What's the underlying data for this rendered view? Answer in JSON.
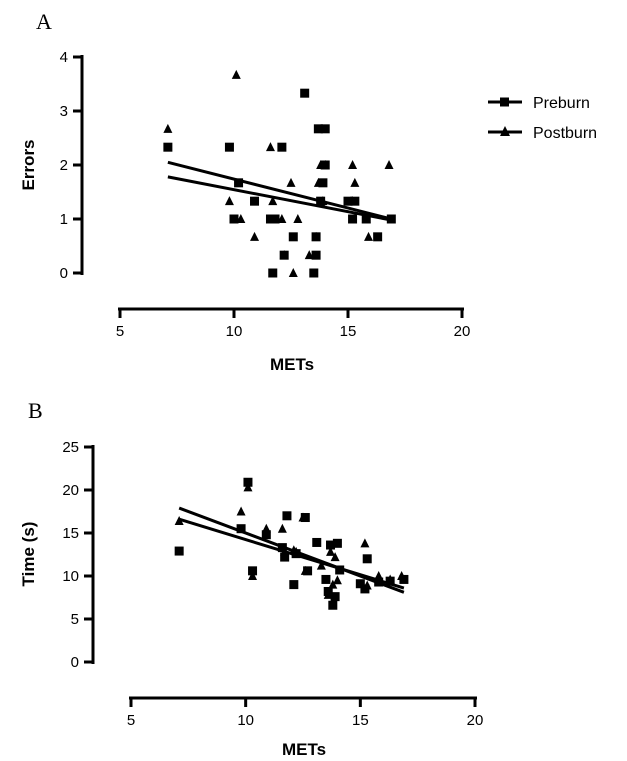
{
  "legend": {
    "position": "right of panel A",
    "entries": [
      {
        "name": "Preburn",
        "marker": "square"
      },
      {
        "name": "Postburn",
        "marker": "triangle"
      }
    ]
  },
  "chart_data": [
    {
      "panel_label": "A",
      "type": "scatter",
      "xlabel": "METs",
      "ylabel": "Errors",
      "xlim": [
        5,
        20
      ],
      "ylim": [
        0,
        4
      ],
      "xticks": [
        5,
        10,
        15,
        20
      ],
      "yticks": [
        0,
        1,
        2,
        3,
        4
      ],
      "grid": false,
      "series": [
        {
          "name": "Preburn",
          "marker": "square",
          "points": [
            [
              7.1,
              2.33
            ],
            [
              9.8,
              2.33
            ],
            [
              10.2,
              1.67
            ],
            [
              10.0,
              1.0
            ],
            [
              10.9,
              1.33
            ],
            [
              11.6,
              1.0
            ],
            [
              11.8,
              1.0
            ],
            [
              12.1,
              2.33
            ],
            [
              12.2,
              0.33
            ],
            [
              11.7,
              0.0
            ],
            [
              12.6,
              0.67
            ],
            [
              13.1,
              3.33
            ],
            [
              13.5,
              0.0
            ],
            [
              13.6,
              0.67
            ],
            [
              13.7,
              2.67
            ],
            [
              13.8,
              1.33
            ],
            [
              14.0,
              2.67
            ],
            [
              13.9,
              1.67
            ],
            [
              14.0,
              2.0
            ],
            [
              13.6,
              0.33
            ],
            [
              15.0,
              1.33
            ],
            [
              15.3,
              1.33
            ],
            [
              15.2,
              1.0
            ],
            [
              15.8,
              1.0
            ],
            [
              16.3,
              0.67
            ],
            [
              16.9,
              1.0
            ]
          ],
          "fit": {
            "x": [
              7.1,
              16.9
            ],
            "y": [
              2.05,
              1.0
            ]
          }
        },
        {
          "name": "Postburn",
          "marker": "triangle",
          "points": [
            [
              7.1,
              2.67
            ],
            [
              9.8,
              1.33
            ],
            [
              10.1,
              3.67
            ],
            [
              10.3,
              1.0
            ],
            [
              10.9,
              0.67
            ],
            [
              11.6,
              2.33
            ],
            [
              11.7,
              1.33
            ],
            [
              12.1,
              1.0
            ],
            [
              12.2,
              0.33
            ],
            [
              12.5,
              1.67
            ],
            [
              12.6,
              0.0
            ],
            [
              12.8,
              1.0
            ],
            [
              13.3,
              0.33
            ],
            [
              13.6,
              0.67
            ],
            [
              13.7,
              1.67
            ],
            [
              13.8,
              2.0
            ],
            [
              14.0,
              2.0
            ],
            [
              13.9,
              1.33
            ],
            [
              15.2,
              2.0
            ],
            [
              15.3,
              1.67
            ],
            [
              15.2,
              1.33
            ],
            [
              15.8,
              1.0
            ],
            [
              15.9,
              0.67
            ],
            [
              16.8,
              2.0
            ]
          ],
          "fit": {
            "x": [
              7.1,
              16.9
            ],
            "y": [
              1.78,
              0.98
            ]
          }
        }
      ]
    },
    {
      "panel_label": "B",
      "type": "scatter",
      "xlabel": "METs",
      "ylabel": "Time (s)",
      "xlim": [
        5,
        20
      ],
      "ylim": [
        0,
        25
      ],
      "xticks": [
        5,
        10,
        15,
        20
      ],
      "yticks": [
        0,
        5,
        10,
        15,
        20,
        25
      ],
      "grid": false,
      "series": [
        {
          "name": "Preburn",
          "marker": "square",
          "points": [
            [
              7.1,
              12.9
            ],
            [
              9.8,
              15.5
            ],
            [
              10.1,
              20.9
            ],
            [
              10.3,
              10.6
            ],
            [
              10.9,
              14.8
            ],
            [
              11.6,
              13.3
            ],
            [
              11.7,
              12.2
            ],
            [
              11.8,
              17.0
            ],
            [
              12.1,
              9.0
            ],
            [
              12.2,
              12.6
            ],
            [
              12.6,
              16.8
            ],
            [
              12.7,
              10.6
            ],
            [
              13.1,
              13.9
            ],
            [
              13.5,
              9.6
            ],
            [
              13.6,
              8.2
            ],
            [
              13.7,
              13.6
            ],
            [
              13.8,
              6.6
            ],
            [
              14.0,
              13.8
            ],
            [
              13.9,
              7.6
            ],
            [
              14.1,
              10.7
            ],
            [
              15.0,
              9.1
            ],
            [
              15.3,
              12.0
            ],
            [
              15.2,
              8.5
            ],
            [
              15.8,
              9.3
            ],
            [
              16.3,
              9.4
            ],
            [
              16.9,
              9.6
            ]
          ],
          "fit": {
            "x": [
              7.1,
              16.9
            ],
            "y": [
              17.9,
              8.1
            ]
          }
        },
        {
          "name": "Postburn",
          "marker": "triangle",
          "points": [
            [
              7.1,
              16.4
            ],
            [
              9.8,
              17.5
            ],
            [
              10.1,
              20.3
            ],
            [
              10.3,
              10.0
            ],
            [
              10.9,
              15.5
            ],
            [
              11.6,
              15.5
            ],
            [
              11.7,
              12.8
            ],
            [
              12.1,
              13.0
            ],
            [
              12.2,
              12.8
            ],
            [
              12.5,
              16.8
            ],
            [
              12.6,
              10.6
            ],
            [
              13.3,
              11.2
            ],
            [
              13.6,
              7.8
            ],
            [
              13.7,
              12.8
            ],
            [
              13.8,
              9.0
            ],
            [
              13.9,
              12.2
            ],
            [
              14.0,
              9.5
            ],
            [
              15.2,
              13.8
            ],
            [
              15.3,
              8.9
            ],
            [
              15.8,
              10.0
            ],
            [
              16.3,
              9.6
            ],
            [
              16.8,
              10.0
            ]
          ],
          "fit": {
            "x": [
              7.1,
              16.9
            ],
            "y": [
              16.6,
              8.6
            ]
          }
        }
      ]
    }
  ]
}
